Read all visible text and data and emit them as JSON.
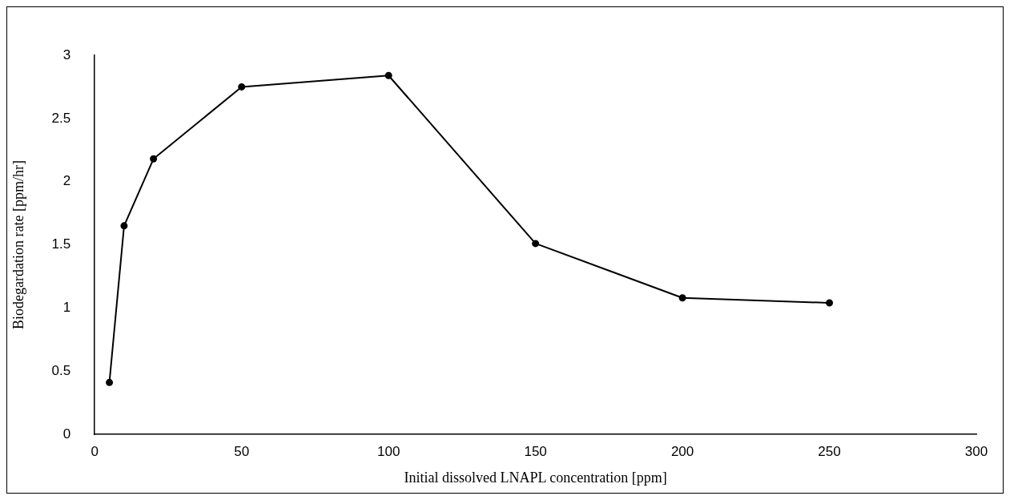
{
  "chart_data": {
    "type": "line",
    "xlabel": "Initial dissolved LNAPL concentration [ppm]",
    "ylabel": "Biodegardation rate [ppm/hr]",
    "x": [
      5,
      10,
      20,
      50,
      100,
      150,
      200,
      250
    ],
    "series": [
      {
        "color": "#000000",
        "values": [
          0.41,
          1.65,
          2.18,
          2.75,
          2.84,
          1.51,
          1.08,
          1.04
        ]
      }
    ],
    "xlim": [
      0,
      300
    ],
    "xticks": [
      0,
      50,
      100,
      150,
      200,
      250,
      300
    ],
    "ylim": [
      0,
      3
    ],
    "yticks": [
      0,
      0.5,
      1,
      1.5,
      2,
      2.5,
      3
    ],
    "grid": false,
    "legend": false,
    "marker": "circle",
    "line_style": "solid"
  }
}
